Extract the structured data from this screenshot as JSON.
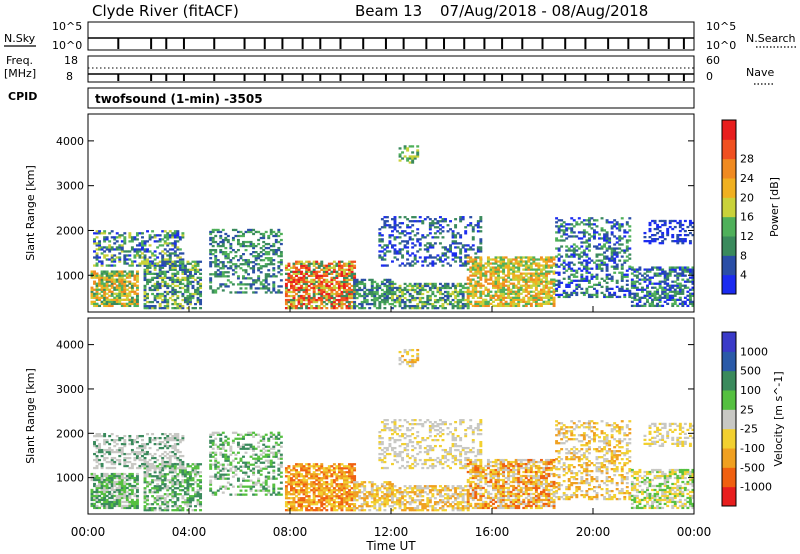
{
  "header": {
    "title": "Clyde River (fitACF)",
    "beam_label": "Beam 13",
    "date_range": "07/Aug/2018 - 08/Aug/2018"
  },
  "top_panels": {
    "nsky_label": "N.Sky",
    "nsky_ticks": [
      "10^5",
      "10^0"
    ],
    "nsearch_label": "N.Search",
    "nsearch_ticks": [
      "10^5",
      "10^0"
    ],
    "freq_label": "Freq.",
    "freq_unit": "[MHz]",
    "freq_ticks": [
      "18",
      "8"
    ],
    "nave_label": "Nave",
    "nave_ticks": [
      "60",
      "0"
    ],
    "cpid_label": "CPID",
    "cpid_value": "twofsound (1-min) -3505"
  },
  "colors": {
    "power": [
      "#1b2bf0",
      "#2a4ea6",
      "#3a8a5c",
      "#4fb05a",
      "#c9d23a",
      "#f0b020",
      "#f08a20",
      "#f05020",
      "#e81e1e"
    ],
    "velocity": [
      "#3a3ac8",
      "#2a5aa8",
      "#3a8a5c",
      "#55c040",
      "#c8c8c4",
      "#f2d030",
      "#f0a020",
      "#f06010",
      "#e81e1e"
    ]
  },
  "chart_data": [
    {
      "type": "heatmap",
      "name": "power",
      "ylabel": "Slant Range [km]",
      "yticks": [
        "1000",
        "2000",
        "3000",
        "4000"
      ],
      "ylim": [
        180,
        4600
      ],
      "colorbar_label": "Power [dB]",
      "colorbar_ticks": [
        "4",
        "8",
        "12",
        "16",
        "20",
        "24",
        "28"
      ],
      "colorbar_range": [
        0,
        32
      ]
    },
    {
      "type": "heatmap",
      "name": "velocity",
      "ylabel": "Slant Range [km]",
      "yticks": [
        "1000",
        "2000",
        "3000",
        "4000"
      ],
      "ylim": [
        180,
        4600
      ],
      "colorbar_label": "Velocity [m s^-1]",
      "colorbar_ticks": [
        "1000",
        "500",
        "100",
        "25",
        "-25",
        "-100",
        "-500",
        "-1000"
      ]
    }
  ],
  "xaxis": {
    "label": "Time UT",
    "ticks": [
      "00:00",
      "04:00",
      "08:00",
      "12:00",
      "16:00",
      "20:00",
      "00:00"
    ]
  }
}
